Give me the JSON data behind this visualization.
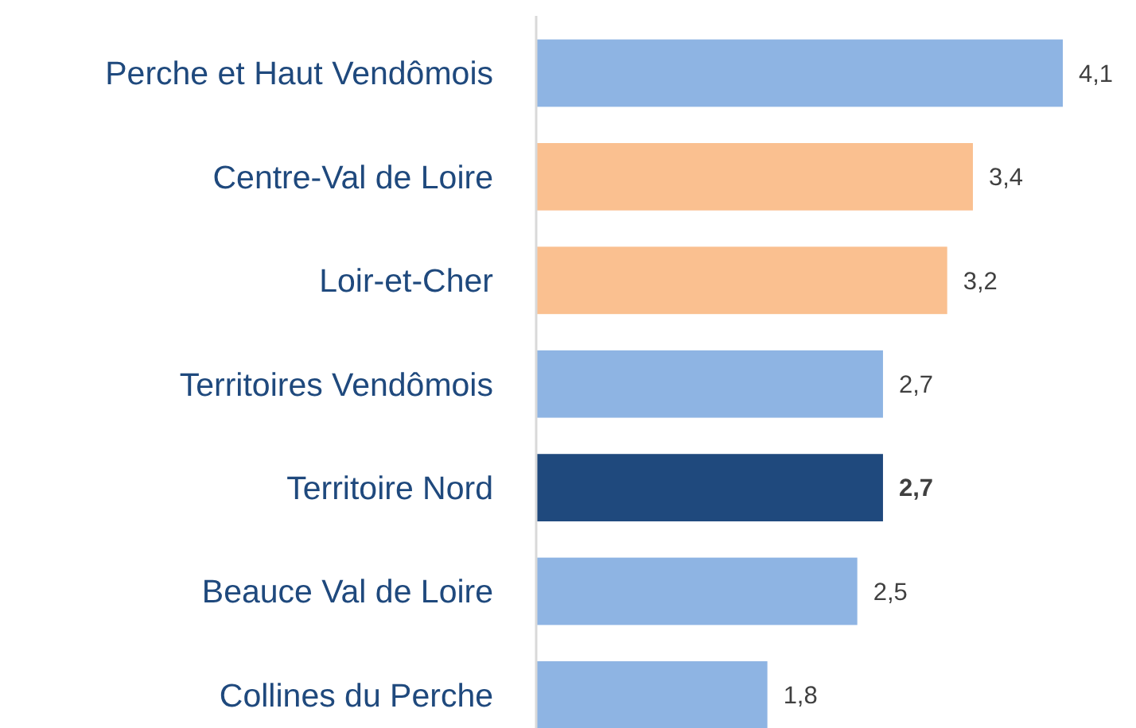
{
  "chart_data": {
    "type": "bar",
    "orientation": "horizontal",
    "categories": [
      "Perche et Haut Vendômois",
      "Centre-Val de Loire",
      "Loir-et-Cher",
      "Territoires Vendômois",
      "Territoire Nord",
      "Beauce Val de Loire",
      "Collines du Perche"
    ],
    "values": [
      4.1,
      3.4,
      3.2,
      2.7,
      2.7,
      2.5,
      1.8
    ],
    "colors": [
      "#8eb4e3",
      "#fac090",
      "#fac090",
      "#8eb4e3",
      "#1f497d",
      "#8eb4e3",
      "#8eb4e3"
    ],
    "value_labels": [
      "4,1",
      "3,4",
      "3,2",
      "2,7",
      "2,7",
      "2,5",
      "1,8"
    ]
  }
}
